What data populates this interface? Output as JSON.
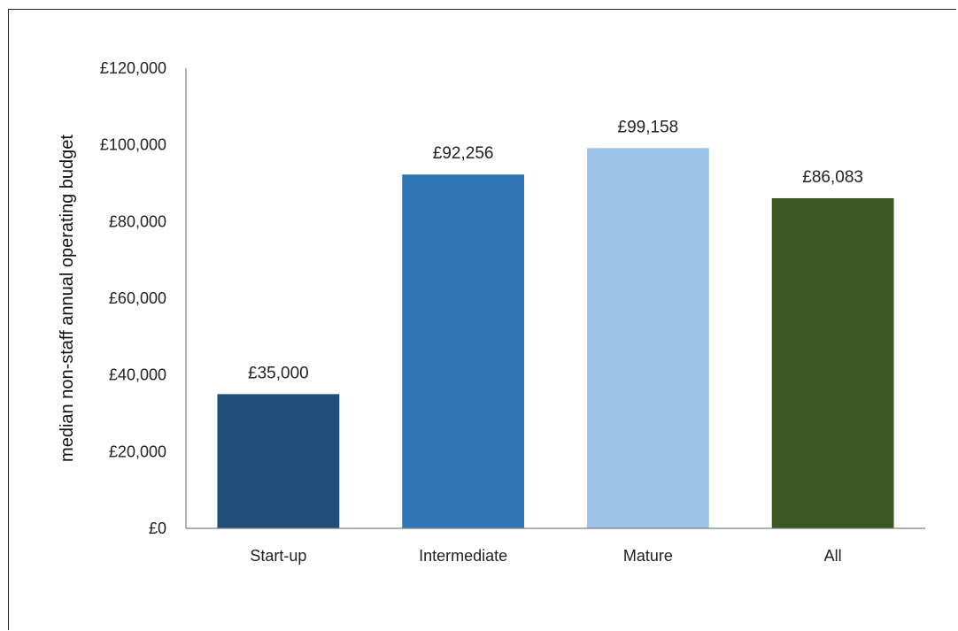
{
  "chart_data": {
    "type": "bar",
    "title": "",
    "xlabel": "",
    "ylabel": "median non-staff annual operating budget",
    "categories": [
      "Start-up",
      "Intermediate",
      "Mature",
      "All"
    ],
    "values": [
      35000,
      92256,
      99158,
      86083
    ],
    "value_labels": [
      "£35,000",
      "£92,256",
      "£99,158",
      "£86,083"
    ],
    "bar_colors": [
      "#1f4e79",
      "#2e75b6",
      "#9dc3e6",
      "#385723"
    ],
    "ylim": [
      0,
      120000
    ],
    "y_ticks": [
      0,
      20000,
      40000,
      60000,
      80000,
      100000,
      120000
    ],
    "y_tick_labels": [
      "£0",
      "£20,000",
      "£40,000",
      "£60,000",
      "£80,000",
      "£100,000",
      "£120,000"
    ],
    "grid": false,
    "legend": "none"
  }
}
